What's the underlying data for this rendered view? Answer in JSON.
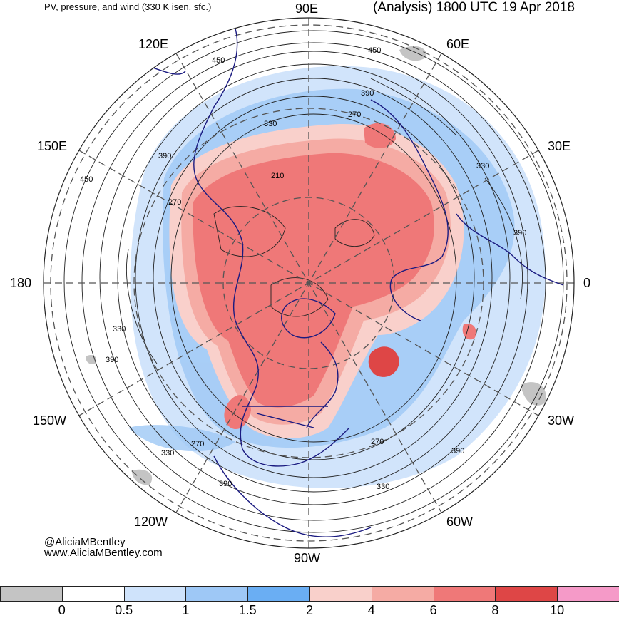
{
  "header": {
    "subtitle": "PV, pressure, and wind (330 K isen. sfc.)",
    "title": "(Analysis) 1800 UTC 19 Apr 2018"
  },
  "longitude_labels": [
    {
      "id": "90e",
      "text": "90E"
    },
    {
      "id": "60e",
      "text": "60E"
    },
    {
      "id": "30e",
      "text": "30E"
    },
    {
      "id": "0",
      "text": "0"
    },
    {
      "id": "30w",
      "text": "30W"
    },
    {
      "id": "60w",
      "text": "60W"
    },
    {
      "id": "90w",
      "text": "90W"
    },
    {
      "id": "120w",
      "text": "120W"
    },
    {
      "id": "150w",
      "text": "150W"
    },
    {
      "id": "180",
      "text": "180"
    },
    {
      "id": "150e",
      "text": "150E"
    },
    {
      "id": "120e",
      "text": "120E"
    }
  ],
  "contour_labels": [
    {
      "id": "c1",
      "text": "450"
    },
    {
      "id": "c2",
      "text": "450"
    },
    {
      "id": "c3",
      "text": "390"
    },
    {
      "id": "c4",
      "text": "270"
    },
    {
      "id": "c5",
      "text": "330"
    },
    {
      "id": "c6",
      "text": "450"
    },
    {
      "id": "c7",
      "text": "390"
    },
    {
      "id": "c8",
      "text": "270"
    },
    {
      "id": "c9",
      "text": "210"
    },
    {
      "id": "c10",
      "text": "330"
    },
    {
      "id": "c11",
      "text": "390"
    },
    {
      "id": "c12",
      "text": "330"
    },
    {
      "id": "c13",
      "text": "390"
    },
    {
      "id": "c14",
      "text": "270"
    },
    {
      "id": "c15",
      "text": "330"
    },
    {
      "id": "c16",
      "text": "390"
    },
    {
      "id": "c17",
      "text": "270"
    },
    {
      "id": "c18",
      "text": "330"
    },
    {
      "id": "c19",
      "text": "390"
    }
  ],
  "credit": {
    "handle": "@AliciaMBentley",
    "url": "www.AliciaMBentley.com"
  },
  "colorbar": {
    "colors": [
      "#c4c4c4",
      "#ffffff",
      "#cfe3fb",
      "#9ec8f6",
      "#6aaef3",
      "#f9d0cb",
      "#f5aba4",
      "#ef7878",
      "#de4646",
      "#f59ac8"
    ],
    "ticks": [
      "0",
      "0.5",
      "1",
      "1.5",
      "2",
      "4",
      "6",
      "8",
      "10"
    ]
  }
}
